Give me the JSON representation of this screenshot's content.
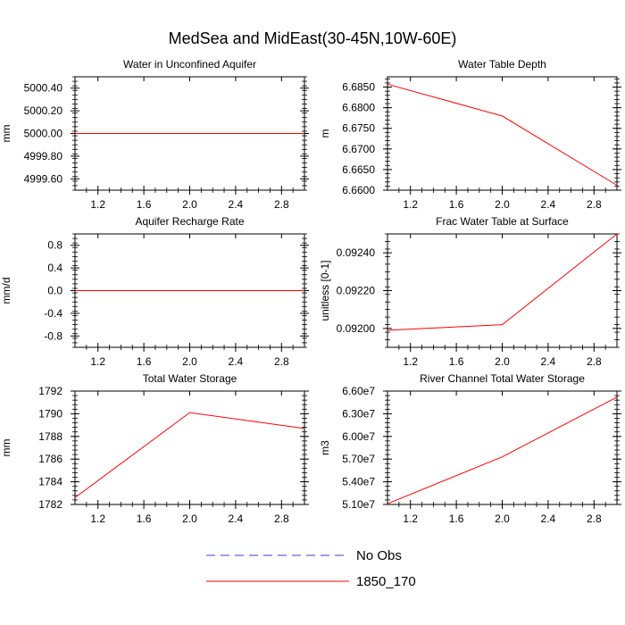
{
  "figure": {
    "title": "MedSea and MidEast(30-45N,10W-60E)",
    "legend": [
      {
        "label": "No Obs",
        "color": "#3b3bc8",
        "dashed": true
      },
      {
        "label": "1850_170",
        "color": "#ff0000",
        "dashed": false
      }
    ]
  },
  "chart_data": [
    {
      "type": "line",
      "title": "Water in Unconfined Aquifer",
      "ylabel": "mm",
      "xlim": [
        1,
        3
      ],
      "ylim": [
        4999.5,
        5000.5
      ],
      "xticks": [
        "1.2",
        "1.6",
        "2.0",
        "2.4",
        "2.8"
      ],
      "yticks": [
        "4999.60",
        "4999.80",
        "5000.00",
        "5000.20",
        "5000.40"
      ],
      "ytick_values": [
        4999.6,
        4999.8,
        5000.0,
        5000.2,
        5000.4
      ],
      "series": [
        {
          "name": "1850_170",
          "color": "#ff0000",
          "x": [
            1,
            2,
            3
          ],
          "y": [
            5000.0,
            5000.0,
            5000.0
          ]
        }
      ]
    },
    {
      "type": "line",
      "title": "Water Table Depth",
      "ylabel": "m",
      "xlim": [
        1,
        3
      ],
      "ylim": [
        6.66,
        6.6875
      ],
      "xticks": [
        "1.2",
        "1.6",
        "2.0",
        "2.4",
        "2.8"
      ],
      "yticks": [
        "6.6600",
        "6.6650",
        "6.6700",
        "6.6750",
        "6.6800",
        "6.6850"
      ],
      "ytick_values": [
        6.66,
        6.665,
        6.67,
        6.675,
        6.68,
        6.685
      ],
      "series": [
        {
          "name": "1850_170",
          "color": "#ff0000",
          "x": [
            1,
            2,
            3
          ],
          "y": [
            6.6857,
            6.678,
            6.6612
          ]
        }
      ]
    },
    {
      "type": "line",
      "title": "Aquifer Recharge Rate",
      "ylabel": "mm/d",
      "xlim": [
        1,
        3
      ],
      "ylim": [
        -1,
        1
      ],
      "xticks": [
        "1.2",
        "1.6",
        "2.0",
        "2.4",
        "2.8"
      ],
      "yticks": [
        "-0.8",
        "-0.4",
        "0.0",
        "0.4",
        "0.8"
      ],
      "ytick_values": [
        -0.8,
        -0.4,
        0.0,
        0.4,
        0.8
      ],
      "series": [
        {
          "name": "1850_170",
          "color": "#ff0000",
          "x": [
            1,
            2,
            3
          ],
          "y": [
            0.0,
            0.0,
            0.0
          ]
        }
      ]
    },
    {
      "type": "line",
      "title": "Frac Water Table at Surface",
      "ylabel": "unitless [0-1]",
      "xlim": [
        1,
        3
      ],
      "ylim": [
        0.0919,
        0.0925
      ],
      "xticks": [
        "1.2",
        "1.6",
        "2.0",
        "2.4",
        "2.8"
      ],
      "yticks": [
        "0.09200",
        "0.09220",
        "0.09240"
      ],
      "ytick_values": [
        0.092,
        0.0922,
        0.0924
      ],
      "series": [
        {
          "name": "1850_170",
          "color": "#ff0000",
          "x": [
            1,
            2,
            3
          ],
          "y": [
            0.09199,
            0.09202,
            0.0925
          ]
        }
      ]
    },
    {
      "type": "line",
      "title": "Total Water Storage",
      "ylabel": "mm",
      "xlim": [
        1,
        3
      ],
      "ylim": [
        1782,
        1792
      ],
      "xticks": [
        "1.2",
        "1.6",
        "2.0",
        "2.4",
        "2.8"
      ],
      "yticks": [
        "1782",
        "1784",
        "1786",
        "1788",
        "1790",
        "1792"
      ],
      "ytick_values": [
        1782,
        1784,
        1786,
        1788,
        1790,
        1792
      ],
      "series": [
        {
          "name": "1850_170",
          "color": "#ff0000",
          "x": [
            1,
            2,
            3
          ],
          "y": [
            1782.6,
            1790.1,
            1788.7
          ]
        }
      ]
    },
    {
      "type": "line",
      "title": "River Channel Total Water Storage",
      "ylabel": "m3",
      "xlim": [
        1,
        3
      ],
      "ylim": [
        51000000,
        66000000
      ],
      "xticks": [
        "1.2",
        "1.6",
        "2.0",
        "2.4",
        "2.8"
      ],
      "yticks": [
        "5.10e7",
        "5.40e7",
        "5.70e7",
        "6.00e7",
        "6.30e7",
        "6.60e7"
      ],
      "ytick_values": [
        51000000,
        54000000,
        57000000,
        60000000,
        63000000,
        66000000
      ],
      "series": [
        {
          "name": "1850_170",
          "color": "#ff0000",
          "x": [
            1,
            2,
            3
          ],
          "y": [
            51100000,
            57300000,
            65200000
          ]
        }
      ]
    }
  ]
}
